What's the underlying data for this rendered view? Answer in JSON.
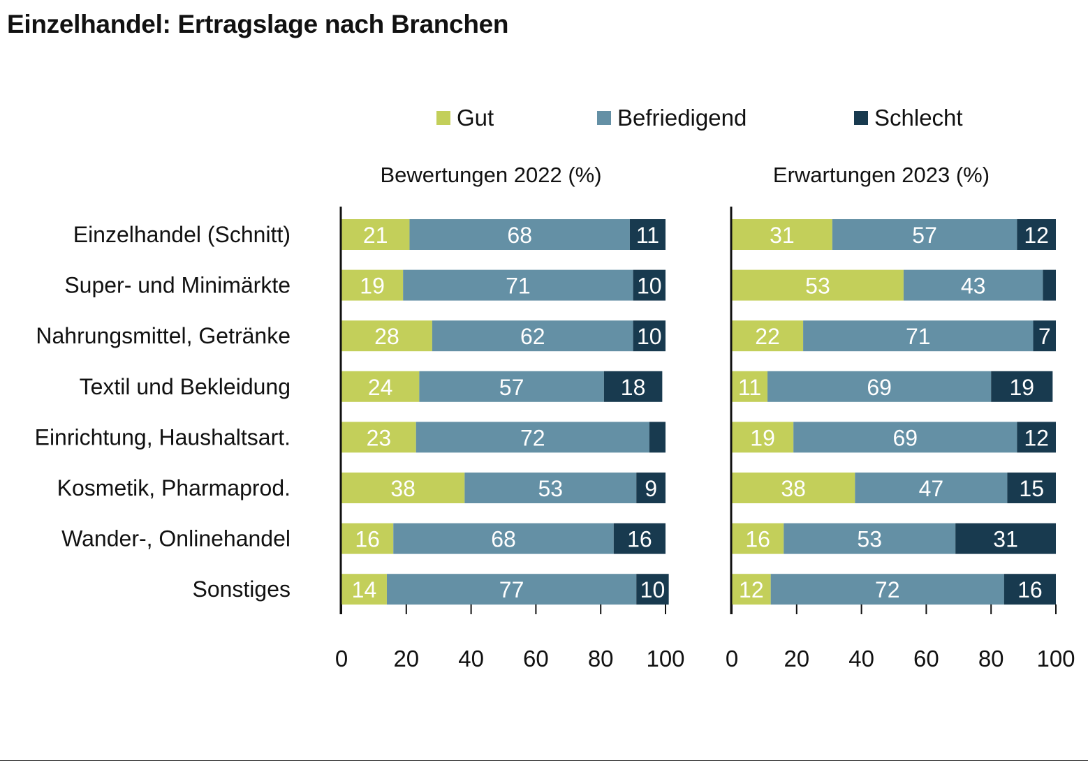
{
  "title": "Einzelhandel: Ertragslage nach Branchen",
  "legend": [
    {
      "label": "Gut",
      "color": "#c3cf5a"
    },
    {
      "label": "Befriedigend",
      "color": "#6490a5"
    },
    {
      "label": "Schlecht",
      "color": "#183a4f"
    }
  ],
  "chart_data": {
    "type": "bar",
    "stacked": true,
    "orientation": "horizontal",
    "categories": [
      "Einzelhandel (Schnitt)",
      "Super- und Minimärkte",
      "Nahrungsmittel, Getränke",
      "Textil und Bekleidung",
      "Einrichtung, Haushaltsart.",
      "Kosmetik, Pharmaprod.",
      "Wander-, Onlinehandel",
      "Sonstiges"
    ],
    "xlim": [
      0,
      100
    ],
    "xticks": [
      0,
      20,
      40,
      60,
      80,
      100
    ],
    "panels": [
      {
        "title": "Bewertungen 2022 (%)",
        "series": [
          {
            "name": "Gut",
            "values": [
              21,
              19,
              28,
              24,
              23,
              38,
              16,
              14
            ]
          },
          {
            "name": "Befriedigend",
            "values": [
              68,
              71,
              62,
              57,
              72,
              53,
              68,
              77
            ]
          },
          {
            "name": "Schlecht",
            "values": [
              11,
              10,
              10,
              18,
              5,
              9,
              16,
              10
            ]
          }
        ],
        "labels": [
          [
            "21",
            "68",
            "11"
          ],
          [
            "19",
            "71",
            "10"
          ],
          [
            "28",
            "62",
            "10"
          ],
          [
            "24",
            "57",
            "18"
          ],
          [
            "23",
            "72",
            ""
          ],
          [
            "38",
            "53",
            "9"
          ],
          [
            "16",
            "68",
            "16"
          ],
          [
            "14",
            "77",
            "10"
          ]
        ]
      },
      {
        "title": "Erwartungen 2023 (%)",
        "series": [
          {
            "name": "Gut",
            "values": [
              31,
              53,
              22,
              11,
              19,
              38,
              16,
              12
            ]
          },
          {
            "name": "Befriedigend",
            "values": [
              57,
              43,
              71,
              69,
              69,
              47,
              53,
              72
            ]
          },
          {
            "name": "Schlecht",
            "values": [
              12,
              4,
              7,
              19,
              12,
              15,
              31,
              16
            ]
          }
        ],
        "labels": [
          [
            "31",
            "57",
            "12"
          ],
          [
            "53",
            "43",
            ""
          ],
          [
            "22",
            "71",
            "7"
          ],
          [
            "11",
            "69",
            "19"
          ],
          [
            "19",
            "69",
            "12"
          ],
          [
            "38",
            "47",
            "15"
          ],
          [
            "16",
            "53",
            "31"
          ],
          [
            "12",
            "72",
            "16"
          ]
        ]
      }
    ]
  }
}
